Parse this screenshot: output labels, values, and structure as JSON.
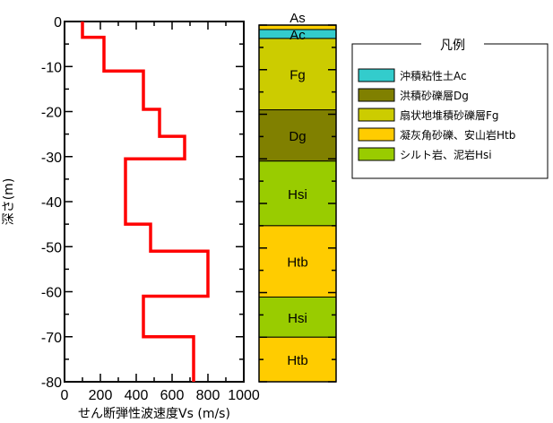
{
  "chart_data": {
    "type": "line",
    "xlabel": "せん断弾性波速度Vs (m/s)",
    "ylabel": "深さ(m)",
    "xlim": [
      0,
      1000
    ],
    "ylim": [
      -80,
      0
    ],
    "x_ticks": [
      0,
      200,
      400,
      600,
      800,
      1000
    ],
    "x_tick_labels": [
      "0",
      "200",
      "400",
      "600",
      "800",
      "1000"
    ],
    "y_ticks": [
      0,
      -10,
      -20,
      -30,
      -40,
      -50,
      -60,
      -70,
      -80
    ],
    "y_tick_labels": [
      "0",
      "-10",
      "-20",
      "-30",
      "-40",
      "-50",
      "-60",
      "-70",
      "-80"
    ],
    "series": [
      {
        "color": "#ff0000",
        "points": [
          [
            100,
            0
          ],
          [
            100,
            -3.5
          ],
          [
            220,
            -3.5
          ],
          [
            220,
            -11
          ],
          [
            440,
            -11
          ],
          [
            440,
            -19.5
          ],
          [
            530,
            -19.5
          ],
          [
            530,
            -25.5
          ],
          [
            670,
            -25.5
          ],
          [
            670,
            -30.5
          ],
          [
            340,
            -30.5
          ],
          [
            340,
            -45
          ],
          [
            480,
            -45
          ],
          [
            480,
            -51
          ],
          [
            800,
            -51
          ],
          [
            800,
            -61
          ],
          [
            440,
            -61
          ],
          [
            440,
            -70
          ],
          [
            720,
            -70
          ],
          [
            720,
            -80
          ]
        ]
      }
    ],
    "grid": false
  },
  "column": {
    "layers": [
      {
        "label": "As",
        "top": 0,
        "bottom": -1,
        "color": "#ffd000"
      },
      {
        "label": "Ac",
        "top": -1,
        "bottom": -3,
        "color": "#33cccc"
      },
      {
        "label": "Fg",
        "top": -3,
        "bottom": -19,
        "color": "#cccc00"
      },
      {
        "label": "Dg",
        "top": -19,
        "bottom": -30.5,
        "color": "#808000"
      },
      {
        "label": "Hsi",
        "top": -30.5,
        "bottom": -45,
        "color": "#99cc00"
      },
      {
        "label": "Htb",
        "top": -45,
        "bottom": -61,
        "color": "#ffcc00"
      },
      {
        "label": "Hsi",
        "top": -61,
        "bottom": -70,
        "color": "#99cc00"
      },
      {
        "label": "Htb",
        "top": -70,
        "bottom": -80,
        "color": "#ffcc00"
      }
    ]
  },
  "legend": {
    "title": "凡例",
    "items": [
      {
        "label": "沖積粘性土Ac",
        "color": "#33cccc"
      },
      {
        "label": "洪積砂礫層Dg",
        "color": "#808000"
      },
      {
        "label": "扇状地堆積砂礫層Fg",
        "color": "#cccc00"
      },
      {
        "label": "凝灰角砂礫、安山岩Htb",
        "color": "#ffcc00"
      },
      {
        "label": "シルト岩、泥岩Hsi",
        "color": "#99cc00"
      }
    ]
  }
}
